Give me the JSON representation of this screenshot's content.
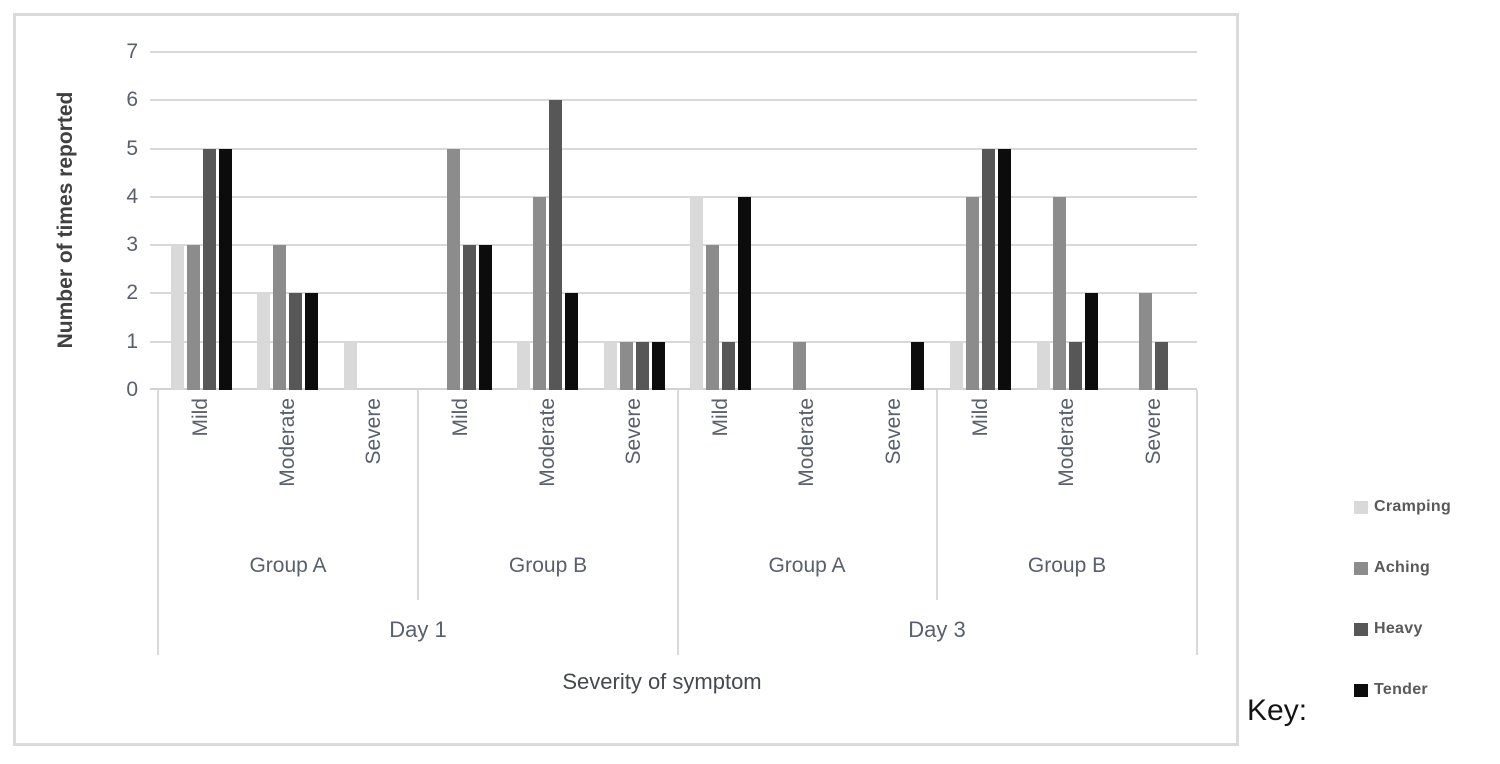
{
  "key_label": "Key:",
  "colors": {
    "gridline": "#d9d9d9",
    "axis_line": "#d2d2d2",
    "box_border": "#dadada",
    "tick_text": "#595f6b",
    "title_text": "#404040"
  },
  "chart_data": {
    "type": "bar",
    "title": "",
    "ylabel": "Number of times reported",
    "xlabel": "Severity of symptom",
    "ylim": [
      0,
      7
    ],
    "yticks": [
      0,
      1,
      2,
      3,
      4,
      5,
      6,
      7
    ],
    "grid": true,
    "legend_position": "right-outside",
    "axis_hierarchy": {
      "severities": [
        "Mild",
        "Moderate",
        "Severe"
      ],
      "groups": [
        "Group A",
        "Group B"
      ],
      "days": [
        "Day 1",
        "Day 3"
      ]
    },
    "clusters": [
      {
        "day": "Day 1",
        "group": "Group A",
        "severity": "Mild"
      },
      {
        "day": "Day 1",
        "group": "Group A",
        "severity": "Moderate"
      },
      {
        "day": "Day 1",
        "group": "Group A",
        "severity": "Severe"
      },
      {
        "day": "Day 1",
        "group": "Group B",
        "severity": "Mild"
      },
      {
        "day": "Day 1",
        "group": "Group B",
        "severity": "Moderate"
      },
      {
        "day": "Day 1",
        "group": "Group B",
        "severity": "Severe"
      },
      {
        "day": "Day 3",
        "group": "Group A",
        "severity": "Mild"
      },
      {
        "day": "Day 3",
        "group": "Group A",
        "severity": "Moderate"
      },
      {
        "day": "Day 3",
        "group": "Group A",
        "severity": "Severe"
      },
      {
        "day": "Day 3",
        "group": "Group B",
        "severity": "Mild"
      },
      {
        "day": "Day 3",
        "group": "Group B",
        "severity": "Moderate"
      },
      {
        "day": "Day 3",
        "group": "Group B",
        "severity": "Severe"
      }
    ],
    "series": [
      {
        "name": "Cramping",
        "color": "#d9d9d9",
        "values": [
          3,
          2,
          1,
          0,
          1,
          1,
          4,
          0,
          0,
          1,
          1,
          0
        ]
      },
      {
        "name": "Aching",
        "color": "#8c8c8c",
        "values": [
          3,
          3,
          0,
          5,
          4,
          1,
          3,
          1,
          0,
          4,
          4,
          2
        ]
      },
      {
        "name": "Heavy",
        "color": "#575757",
        "values": [
          5,
          2,
          0,
          3,
          6,
          1,
          1,
          0,
          0,
          5,
          1,
          1
        ]
      },
      {
        "name": "Tender",
        "color": "#0c0c0c",
        "values": [
          5,
          2,
          0,
          3,
          2,
          1,
          4,
          0,
          1,
          5,
          2,
          0
        ]
      }
    ]
  }
}
